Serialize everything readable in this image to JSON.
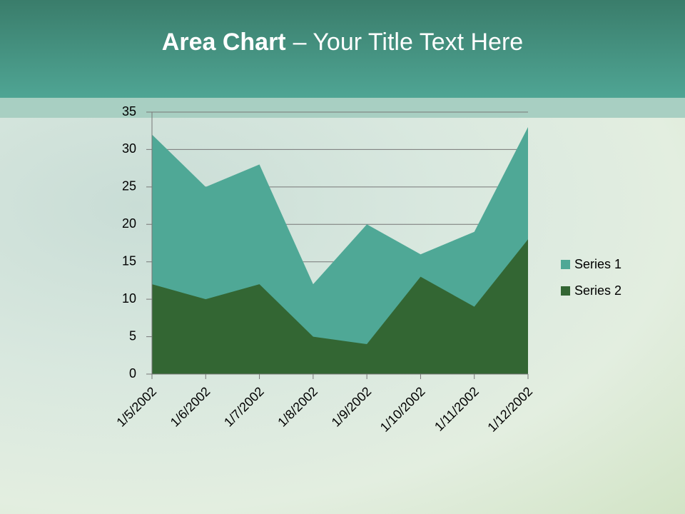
{
  "slide": {
    "title_parts": [
      "Area Chart",
      "– Your Title Text Here"
    ]
  },
  "chart_data": {
    "type": "area",
    "categories": [
      "1/5/2002",
      "1/6/2002",
      "1/7/2002",
      "1/8/2002",
      "1/9/2002",
      "1/10/2002",
      "1/11/2002",
      "1/12/2002"
    ],
    "series": [
      {
        "name": "Series 1",
        "color": "#4fa896",
        "values": [
          32,
          25,
          28,
          12,
          20,
          16,
          19,
          33
        ]
      },
      {
        "name": "Series 2",
        "color": "#336633",
        "values": [
          12,
          10,
          12,
          5,
          4,
          13,
          9,
          18
        ]
      }
    ],
    "ylim": [
      0,
      35
    ],
    "yticks": [
      0,
      5,
      10,
      15,
      20,
      25,
      30,
      35
    ],
    "grid": true,
    "legend": "right"
  }
}
